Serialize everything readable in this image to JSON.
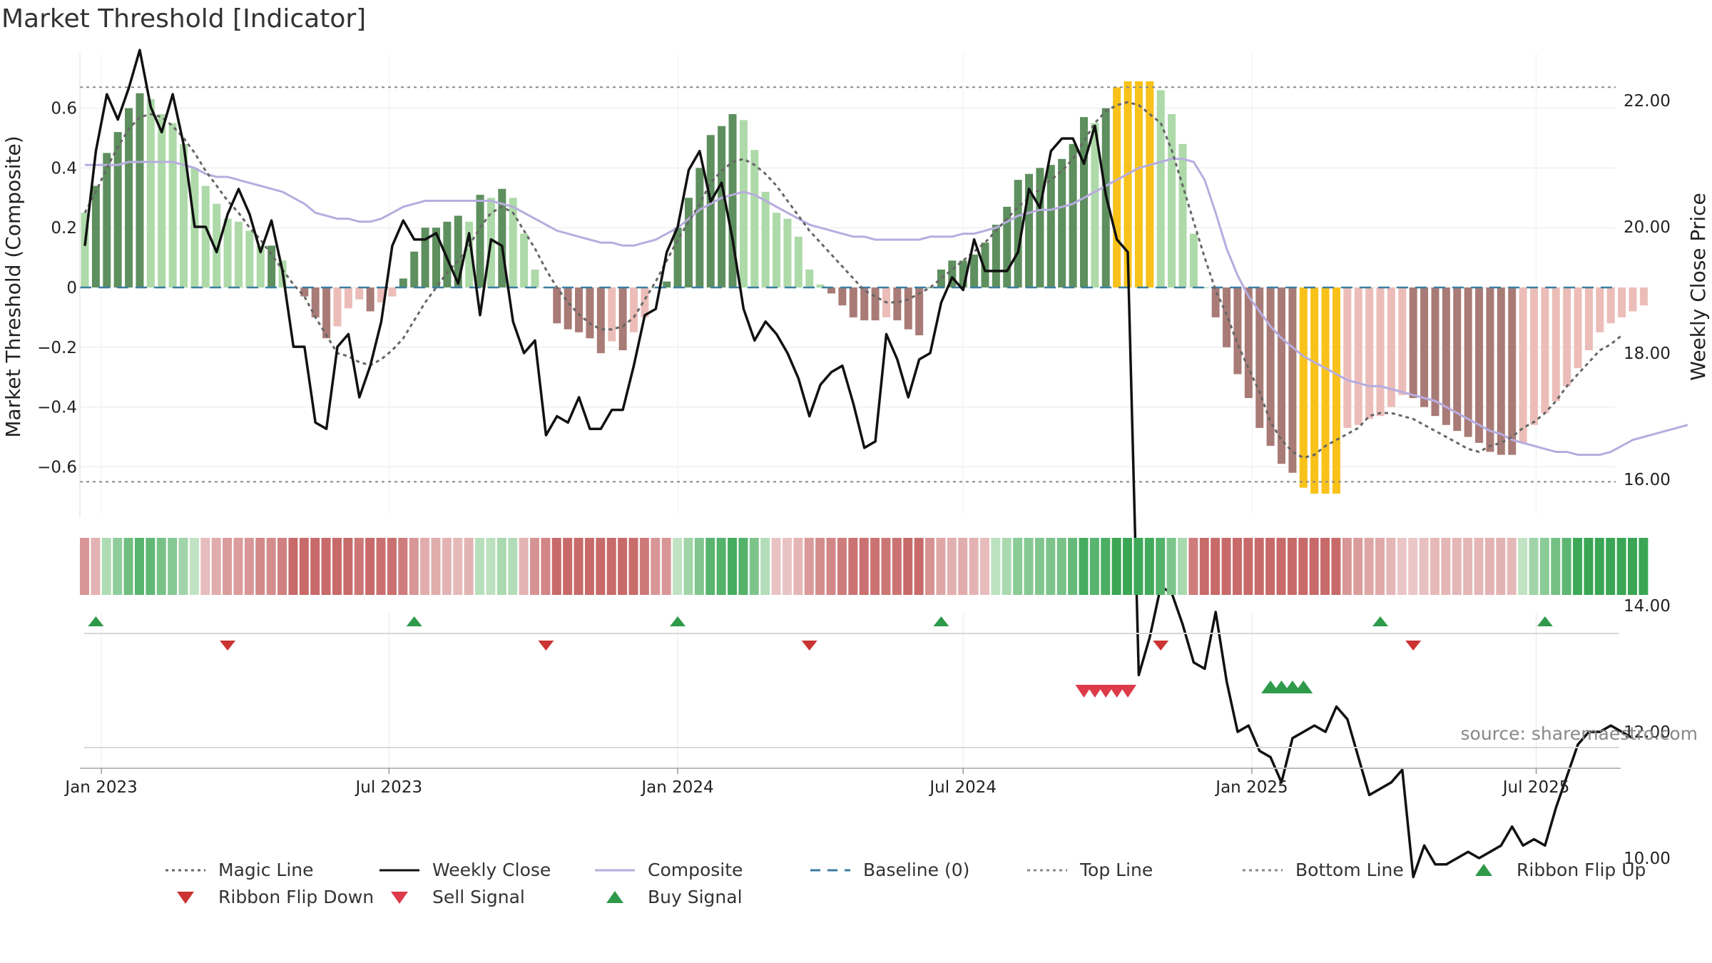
{
  "title": "Market Threshold [Indicator]",
  "source": "source: sharemaestro.com",
  "chart_data": {
    "type": "bar",
    "ylabel_left": "Market Threshold (Composite)",
    "ylabel_right": "Weekly Close Price",
    "left_ticks": [
      "0.6",
      "0.4",
      "0.2",
      "0",
      "−0.2",
      "−0.4",
      "−0.6"
    ],
    "left_tick_values": [
      0.6,
      0.4,
      0.2,
      0,
      -0.2,
      -0.4,
      -0.6
    ],
    "right_ticks": [
      "22.00",
      "20.00",
      "18.00",
      "16.00",
      "14.00",
      "12.00",
      "10.00"
    ],
    "right_tick_values": [
      22,
      20,
      18,
      16,
      14,
      12,
      10
    ],
    "ylim_left": [
      -0.77,
      0.77
    ],
    "ylim_right": [
      8.65,
      23.35
    ],
    "x_ticks": [
      "Jan 2023",
      "Jul 2023",
      "Jan 2024",
      "Jul 2024",
      "Jan 2025",
      "Jul 2025"
    ],
    "x_tick_weeks": [
      1.5,
      27.7,
      54.0,
      80.0,
      106.3,
      132.2
    ],
    "top_line": 0.67,
    "bottom_line": -0.65,
    "composite_bars": [
      0.25,
      0.34,
      0.45,
      0.52,
      0.6,
      0.65,
      0.63,
      0.58,
      0.55,
      0.48,
      0.4,
      0.34,
      0.28,
      0.23,
      0.22,
      0.19,
      0.14,
      0.14,
      0.09,
      0.0,
      -0.03,
      -0.1,
      -0.17,
      -0.13,
      -0.07,
      -0.04,
      -0.08,
      -0.05,
      -0.03,
      0.03,
      0.12,
      0.2,
      0.2,
      0.22,
      0.24,
      0.22,
      0.31,
      0.3,
      0.33,
      0.3,
      0.18,
      0.06,
      0.0,
      -0.12,
      -0.14,
      -0.15,
      -0.17,
      -0.22,
      -0.18,
      -0.21,
      -0.15,
      -0.1,
      0.0,
      0.02,
      0.2,
      0.3,
      0.4,
      0.51,
      0.54,
      0.58,
      0.56,
      0.46,
      0.32,
      0.25,
      0.23,
      0.17,
      0.06,
      0.01,
      -0.02,
      -0.06,
      -0.1,
      -0.11,
      -0.11,
      -0.1,
      -0.11,
      -0.14,
      -0.16,
      0.0,
      0.06,
      0.09,
      0.09,
      0.11,
      0.15,
      0.21,
      0.27,
      0.36,
      0.38,
      0.4,
      0.41,
      0.43,
      0.48,
      0.57,
      0.55,
      0.6,
      0.67,
      0.69,
      0.69,
      0.69,
      0.66,
      0.58,
      0.48,
      0.18,
      0.0,
      -0.1,
      -0.2,
      -0.29,
      -0.37,
      -0.47,
      -0.53,
      -0.59,
      -0.62,
      -0.67,
      -0.69,
      -0.69,
      -0.69,
      -0.47,
      -0.46,
      -0.44,
      -0.43,
      -0.4,
      -0.36,
      -0.37,
      -0.4,
      -0.43,
      -0.46,
      -0.48,
      -0.5,
      -0.52,
      -0.55,
      -0.56,
      -0.56,
      -0.52,
      -0.46,
      -0.42,
      -0.38,
      -0.33,
      -0.27,
      -0.21,
      -0.15,
      -0.12,
      -0.1,
      -0.08,
      -0.06
    ],
    "weekly_close": [
      19.7,
      21.2,
      22.1,
      21.7,
      22.2,
      22.8,
      21.9,
      21.5,
      22.1,
      21.3,
      20.0,
      20.0,
      19.6,
      20.2,
      20.6,
      20.2,
      19.6,
      20.1,
      19.3,
      18.1,
      18.1,
      16.9,
      16.8,
      18.1,
      18.3,
      17.3,
      17.8,
      18.5,
      19.7,
      20.1,
      19.8,
      19.8,
      19.9,
      19.5,
      19.1,
      19.9,
      18.6,
      19.8,
      19.7,
      18.5,
      18.0,
      18.2,
      16.7,
      17.0,
      16.9,
      17.3,
      16.8,
      16.8,
      17.1,
      17.1,
      17.8,
      18.6,
      18.7,
      19.6,
      20.0,
      20.9,
      21.2,
      20.4,
      20.7,
      19.8,
      18.7,
      18.2,
      18.5,
      18.3,
      18.0,
      17.6,
      17.0,
      17.5,
      17.7,
      17.8,
      17.2,
      16.5,
      16.6,
      18.3,
      17.9,
      17.3,
      17.9,
      18.0,
      18.8,
      19.2,
      19.0,
      19.8,
      19.3,
      19.3,
      19.3,
      19.6,
      20.6,
      20.3,
      21.2,
      21.4,
      21.4,
      21.0,
      21.6,
      20.5,
      19.8,
      19.6,
      12.9,
      13.5,
      14.3,
      14.2,
      13.7,
      13.1,
      13.0,
      13.9,
      12.8,
      12.0,
      12.1,
      11.7,
      11.6,
      11.2,
      11.9,
      12.0,
      12.1,
      12.0,
      12.4,
      12.2,
      11.6,
      11.0,
      11.1,
      11.2,
      11.4,
      9.7,
      10.2,
      9.9,
      9.9,
      10.0,
      10.1,
      10.0,
      10.1,
      10.2,
      10.5,
      10.2,
      10.3,
      10.2,
      10.8,
      11.3,
      11.8,
      12.0,
      12.0,
      12.1,
      12.0,
      11.9
    ],
    "composite_line": [
      0.41,
      0.41,
      0.41,
      0.41,
      0.42,
      0.42,
      0.42,
      0.42,
      0.42,
      0.41,
      0.4,
      0.38,
      0.37,
      0.37,
      0.36,
      0.35,
      0.34,
      0.33,
      0.32,
      0.3,
      0.28,
      0.25,
      0.24,
      0.23,
      0.23,
      0.22,
      0.22,
      0.23,
      0.25,
      0.27,
      0.28,
      0.29,
      0.29,
      0.29,
      0.29,
      0.29,
      0.29,
      0.29,
      0.28,
      0.27,
      0.25,
      0.23,
      0.21,
      0.19,
      0.18,
      0.17,
      0.16,
      0.15,
      0.15,
      0.14,
      0.14,
      0.15,
      0.16,
      0.18,
      0.2,
      0.23,
      0.26,
      0.28,
      0.3,
      0.31,
      0.32,
      0.31,
      0.29,
      0.27,
      0.25,
      0.23,
      0.21,
      0.2,
      0.19,
      0.18,
      0.17,
      0.17,
      0.16,
      0.16,
      0.16,
      0.16,
      0.16,
      0.17,
      0.17,
      0.17,
      0.18,
      0.18,
      0.19,
      0.2,
      0.22,
      0.24,
      0.25,
      0.26,
      0.26,
      0.27,
      0.28,
      0.3,
      0.32,
      0.34,
      0.36,
      0.38,
      0.4,
      0.41,
      0.42,
      0.43,
      0.43,
      0.42,
      0.36,
      0.25,
      0.13,
      0.04,
      -0.03,
      -0.08,
      -0.13,
      -0.17,
      -0.2,
      -0.23,
      -0.25,
      -0.27,
      -0.29,
      -0.31,
      -0.32,
      -0.33,
      -0.33,
      -0.34,
      -0.35,
      -0.36,
      -0.37,
      -0.38,
      -0.4,
      -0.42,
      -0.44,
      -0.46,
      -0.48,
      -0.49,
      -0.51,
      -0.52,
      -0.53,
      -0.54,
      -0.55,
      -0.55,
      -0.56,
      -0.56,
      -0.56,
      -0.55,
      -0.53,
      -0.51,
      -0.5,
      -0.49,
      -0.48,
      -0.47,
      -0.46
    ],
    "magic_line": [
      0.25,
      0.32,
      0.4,
      0.47,
      0.53,
      0.57,
      0.58,
      0.57,
      0.54,
      0.5,
      0.45,
      0.39,
      0.34,
      0.29,
      0.25,
      0.2,
      0.16,
      0.11,
      0.06,
      0.01,
      -0.03,
      -0.1,
      -0.16,
      -0.22,
      -0.23,
      -0.25,
      -0.26,
      -0.24,
      -0.21,
      -0.17,
      -0.11,
      -0.05,
      0.0,
      0.05,
      0.09,
      0.14,
      0.2,
      0.25,
      0.27,
      0.25,
      0.19,
      0.13,
      0.06,
      0.0,
      -0.05,
      -0.09,
      -0.12,
      -0.14,
      -0.14,
      -0.13,
      -0.1,
      -0.04,
      0.02,
      0.09,
      0.16,
      0.22,
      0.28,
      0.35,
      0.39,
      0.42,
      0.43,
      0.41,
      0.38,
      0.34,
      0.29,
      0.24,
      0.19,
      0.15,
      0.11,
      0.07,
      0.03,
      -0.01,
      -0.03,
      -0.05,
      -0.05,
      -0.04,
      -0.02,
      0.0,
      0.03,
      0.06,
      0.09,
      0.12,
      0.15,
      0.19,
      0.23,
      0.27,
      0.3,
      0.33,
      0.36,
      0.39,
      0.43,
      0.49,
      0.55,
      0.59,
      0.61,
      0.62,
      0.61,
      0.58,
      0.55,
      0.46,
      0.34,
      0.22,
      0.1,
      -0.01,
      -0.09,
      -0.19,
      -0.27,
      -0.35,
      -0.45,
      -0.51,
      -0.55,
      -0.57,
      -0.56,
      -0.53,
      -0.51,
      -0.49,
      -0.47,
      -0.43,
      -0.42,
      -0.42,
      -0.43,
      -0.44,
      -0.46,
      -0.48,
      -0.5,
      -0.52,
      -0.54,
      -0.55,
      -0.53,
      -0.52,
      -0.5,
      -0.47,
      -0.45,
      -0.42,
      -0.38,
      -0.33,
      -0.29,
      -0.25,
      -0.21,
      -0.19,
      -0.16
    ],
    "ribbon_ups_at": [
      1.0,
      30.0,
      54.0,
      78.0,
      118.0,
      133.0
    ],
    "ribbon_downs_at": [
      13.0,
      42.0,
      66.0,
      98.0,
      121.0
    ],
    "sell_signals_at": [
      91.0,
      92.0,
      93.0,
      94.0,
      95.0
    ],
    "buy_signals_at": [
      108.0,
      109.0,
      110.0,
      111.0
    ],
    "legend": [
      {
        "label": "Magic Line",
        "kind": "dotted",
        "color": "#666666"
      },
      {
        "label": "Weekly Close",
        "kind": "solid",
        "color": "#111111"
      },
      {
        "label": "Composite",
        "kind": "solid",
        "color": "#b7acdf"
      },
      {
        "label": "Baseline (0)",
        "kind": "dashed",
        "color": "#3b7ea1"
      },
      {
        "label": "Top Line",
        "kind": "dotted",
        "color": "#888888"
      },
      {
        "label": "Bottom Line",
        "kind": "dotted",
        "color": "#888888"
      },
      {
        "label": "Ribbon Flip Up",
        "kind": "tri-up",
        "color": "#2e9a4a"
      },
      {
        "label": "Ribbon Flip Down",
        "kind": "tri-down",
        "color": "#cc3333"
      },
      {
        "label": "Sell Signal",
        "kind": "tri-down",
        "color": "#dd3b4a"
      },
      {
        "label": "Buy Signal",
        "kind": "tri-up",
        "color": "#2e9a4a"
      }
    ],
    "colors": {
      "strong_positive": "#5e8f5e",
      "weak_positive": "#addaa8",
      "strong_negative": "#a97b76",
      "weak_negative": "#ecbdb8",
      "extreme": "#f9c21a",
      "weekly_close": "#111111",
      "composite_line": "#b7acdf",
      "magic_line": "#666666",
      "baseline": "#3b7ea1",
      "threshold_lines": "#888888",
      "flip_up": "#2e9a4a",
      "flip_down": "#cc3333",
      "sell": "#dd3b4a",
      "buy": "#2e9a4a"
    }
  }
}
